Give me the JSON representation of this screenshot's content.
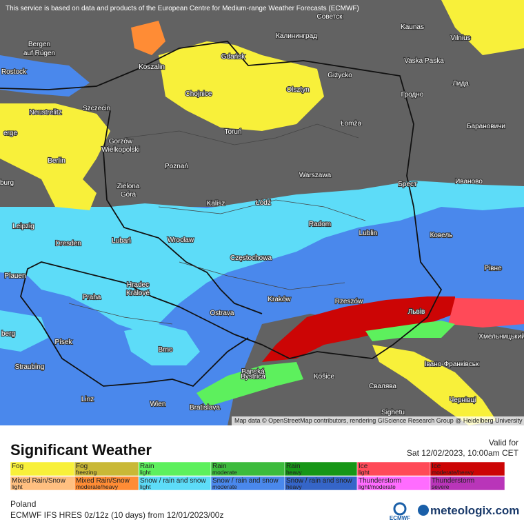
{
  "notice": "This service is based on data and products of the European Centre for Medium-range Weather Forecasts (ECMWF)",
  "attribution": "Map data © OpenStreetMap contributors, rendering GIScience Research Group @ Heidelberg University",
  "cities": [
    "Советск",
    "Kaunas",
    "Vilnius",
    "Bergen",
    "auf Rügen",
    "Калининград",
    "Gdańsk",
    "Koszalin",
    "Vaska Paska",
    "Rostock",
    "Giżycko",
    "Лида",
    "Olsztyn",
    "Chojnice",
    "Гродно",
    "Szczecin",
    "Neustrelitz",
    "Łomża",
    "Барановичи",
    "Gorzów",
    "Wielkopolski",
    "Toruń",
    "erge",
    "Berlin",
    "Poznań",
    "Warszawa",
    "Брест",
    "Иваново",
    "burg",
    "Zielona",
    "Góra",
    "Kalisz",
    "Łódź",
    "Leipzig",
    "Radom",
    "Lublin",
    "Dresden",
    "Lubań",
    "Wrocław",
    "Ковель",
    "Częstochowa",
    "Plauen",
    "Рівне",
    "Hradec",
    "Králové",
    "Praha",
    "Kraków",
    "Rzeszów",
    "Львів",
    "Ostrava",
    "berg",
    "Хмельницький",
    "Písek",
    "Brno",
    "Івано-Франківськ",
    "Straubing",
    "Banská",
    "Bystrica",
    "Košice",
    "Свалява",
    "Linz",
    "Чернівці",
    "Wien",
    "Bratislava",
    "Sighetu"
  ],
  "legend": {
    "title": "Significant Weather",
    "valid_label": "Valid for",
    "valid_time": "Sat 12/02/2023, 10:00am CET",
    "items": [
      {
        "name": "Fog",
        "color": "#f8f03a"
      },
      {
        "name": "Fog",
        "detail": "freezing",
        "color": "#c9b836"
      },
      {
        "name": "Rain",
        "detail": "light",
        "color": "#5df05d"
      },
      {
        "name": "Rain",
        "detail": "moderate",
        "color": "#3cbb3c"
      },
      {
        "name": "Rain",
        "detail": "heavy",
        "color": "#169616"
      },
      {
        "name": "Ice",
        "detail": "light",
        "color": "#ff4a58"
      },
      {
        "name": "Ice",
        "detail": "moderate/heavy",
        "color": "#cc0505"
      },
      {
        "name": "Mixed Rain/Snow",
        "detail": "light",
        "color": "#ffbf80"
      },
      {
        "name": "Mixed Rain/Snow",
        "detail": "moderate/heavy",
        "color": "#ff8c35"
      },
      {
        "name": "Snow / rain and snow",
        "detail": "light",
        "color": "#5ddcf8"
      },
      {
        "name": "Snow / rain and snow",
        "detail": "moderate",
        "color": "#4a88ec"
      },
      {
        "name": "Snow / rain and snow",
        "detail": "heavy",
        "color": "#3565c8"
      },
      {
        "name": "Thunderstorm",
        "detail": "light/moderate",
        "color": "#ff6cff"
      },
      {
        "name": "Thunderstorm",
        "detail": "severe",
        "color": "#b935b9"
      }
    ]
  },
  "footer": {
    "region": "Poland",
    "model": "ECMWF IFS HRES 0z/12z (10 days) from 12/01/2023/00z",
    "agency": "ECMWF",
    "brand": "meteologix.com"
  }
}
